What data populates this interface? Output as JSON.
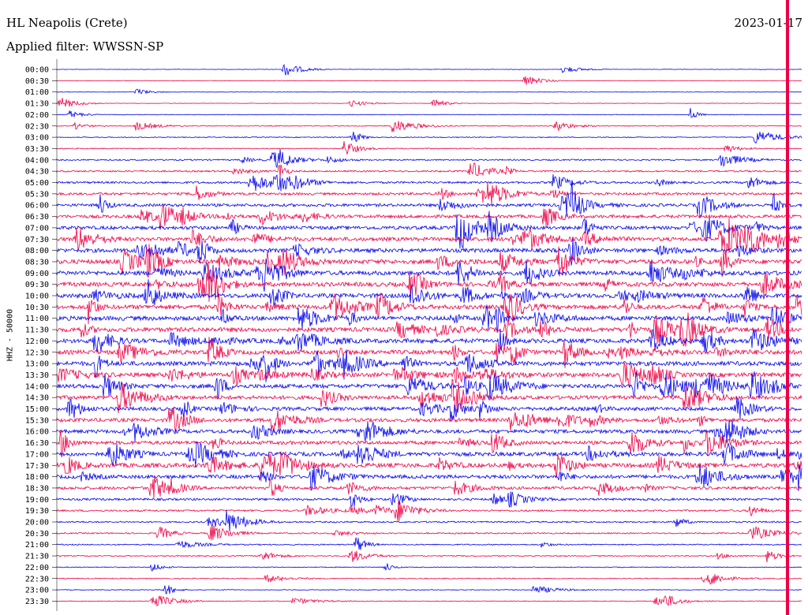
{
  "header": {
    "station": "HL Neapolis (Crete)",
    "date": "2023-01-17",
    "filter": "Applied filter: WWSSN-SP"
  },
  "chart_data": {
    "type": "line",
    "title": "HL Neapolis (Crete)",
    "subtitle": "Applied filter: WWSSN-SP",
    "ylabel": "HHZ - 50000",
    "xlabel": "",
    "date": "2023-01-17",
    "row_labels": [
      "00:00",
      "00:30",
      "01:00",
      "01:30",
      "02:00",
      "02:30",
      "03:00",
      "03:30",
      "04:00",
      "04:30",
      "05:00",
      "05:30",
      "06:00",
      "06:30",
      "07:00",
      "07:30",
      "08:00",
      "08:30",
      "09:00",
      "09:30",
      "10:00",
      "10:30",
      "11:00",
      "11:30",
      "12:00",
      "12:30",
      "13:00",
      "13:30",
      "14:00",
      "14:30",
      "15:00",
      "15:30",
      "16:00",
      "16:30",
      "17:00",
      "17:30",
      "18:00",
      "18:30",
      "19:00",
      "19:30",
      "20:00",
      "20:30",
      "21:00",
      "21:30",
      "22:00",
      "22:30",
      "23:00",
      "23:30"
    ],
    "series_colors": [
      "#0000ee",
      "#ee0044"
    ],
    "noise_level": [
      0.3,
      0.3,
      0.3,
      0.3,
      0.4,
      0.5,
      0.6,
      0.7,
      0.9,
      1.1,
      1.4,
      1.7,
      2.0,
      2.2,
      2.4,
      2.6,
      2.8,
      3.0,
      3.0,
      3.0,
      3.0,
      3.0,
      3.0,
      3.0,
      3.0,
      3.0,
      3.0,
      3.0,
      2.8,
      2.6,
      2.5,
      2.5,
      2.5,
      2.5,
      2.8,
      3.0,
      2.5,
      2.0,
      1.5,
      1.2,
      1.0,
      0.9,
      0.8,
      0.7,
      0.6,
      0.6,
      0.5,
      0.5
    ]
  }
}
